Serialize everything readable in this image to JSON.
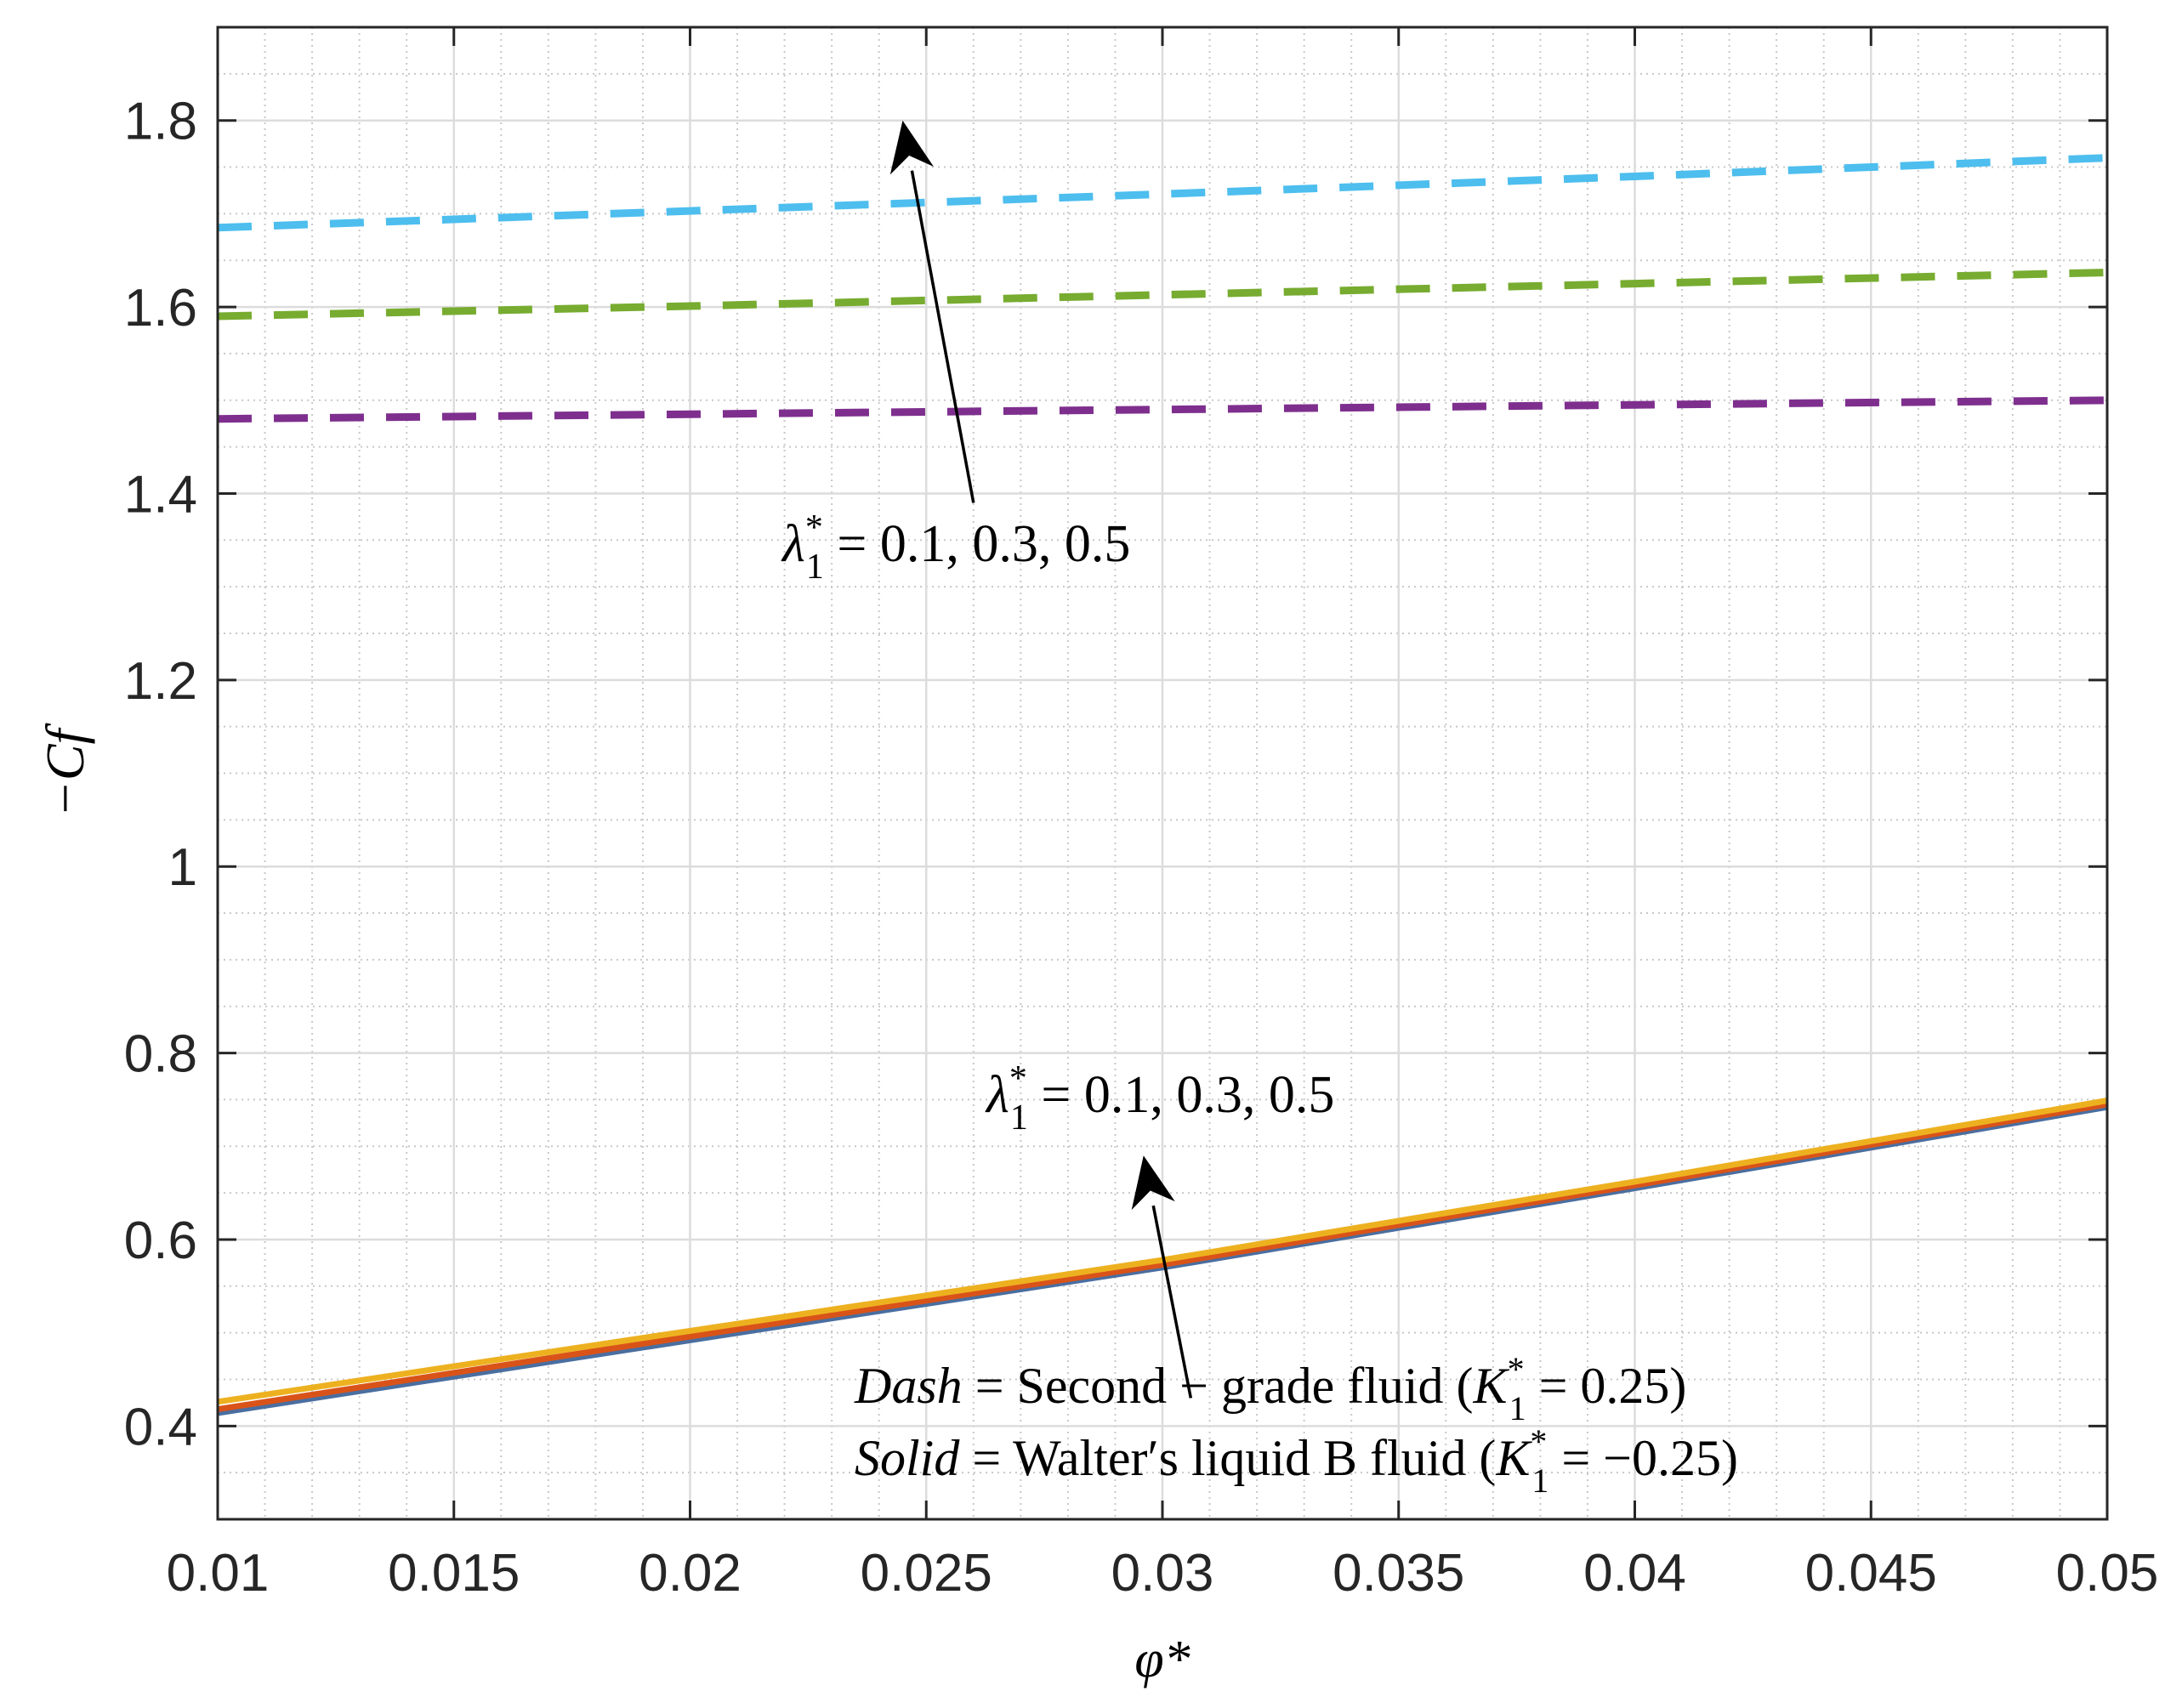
{
  "chart_data": {
    "type": "line",
    "xlabel": "φ*",
    "ylabel": "−Cf",
    "xlim": [
      0.01,
      0.05
    ],
    "ylim": [
      0.3,
      1.9
    ],
    "x_ticks": [
      0.01,
      0.015,
      0.02,
      0.025,
      0.03,
      0.035,
      0.04,
      0.045,
      0.05
    ],
    "x_tick_labels": [
      "0.01",
      "0.015",
      "0.02",
      "0.025",
      "0.03",
      "0.035",
      "0.04",
      "0.045",
      "0.05"
    ],
    "y_ticks": [
      0.4,
      0.6,
      0.8,
      1.0,
      1.2,
      1.4,
      1.6,
      1.8
    ],
    "y_tick_labels": [
      "0.4",
      "0.6",
      "0.8",
      "1",
      "1.2",
      "1.4",
      "1.6",
      "1.8"
    ],
    "grid": true,
    "minor_grid": true,
    "x": [
      0.01,
      0.02,
      0.03,
      0.04,
      0.05
    ],
    "series": [
      {
        "style": "dashed",
        "color": "#4DBEEE",
        "values": [
          1.685,
          1.703,
          1.721,
          1.74,
          1.76
        ]
      },
      {
        "style": "dashed",
        "color": "#77AC30",
        "values": [
          1.59,
          1.601,
          1.613,
          1.625,
          1.637
        ]
      },
      {
        "style": "dashed",
        "color": "#7E2F8E",
        "values": [
          1.48,
          1.485,
          1.49,
          1.495,
          1.5
        ]
      },
      {
        "style": "solid",
        "color": "#4A6EA0",
        "values": [
          0.414,
          0.492,
          0.57,
          0.655,
          0.742
        ]
      },
      {
        "style": "solid",
        "color": "#D95319",
        "values": [
          0.418,
          0.496,
          0.573,
          0.658,
          0.745
        ]
      },
      {
        "style": "solid",
        "color": "#EDB120",
        "values": [
          0.426,
          0.502,
          0.578,
          0.662,
          0.749
        ]
      }
    ],
    "annotations": [
      {
        "id": "lambda-upper",
        "prefix": "λ",
        "sup": "*",
        "sub": "1",
        "text": " = 0.1, 0.3, 0.5",
        "arrow_from": [
          0.026,
          1.39
        ],
        "arrow_to": [
          0.0245,
          1.8
        ]
      },
      {
        "id": "lambda-lower",
        "prefix": "λ",
        "sup": "*",
        "sub": "1",
        "text": " = 0.1, 0.3, 0.5",
        "arrow_from": [
          0.0306,
          0.43
        ],
        "arrow_to": [
          0.0296,
          0.69
        ]
      },
      {
        "id": "note-dash",
        "lhs": "Dash",
        "rhs": " = Second − grade fluid (",
        "k": "K",
        "k_sup": "*",
        "k_sub": "1",
        "k_val": " = 0.25)"
      },
      {
        "id": "note-solid",
        "lhs": "Solid",
        "rhs": " = Walter′s liquid B fluid (",
        "k": "K",
        "k_sup": "*",
        "k_sub": "1",
        "k_val": " = −0.25)"
      }
    ]
  }
}
